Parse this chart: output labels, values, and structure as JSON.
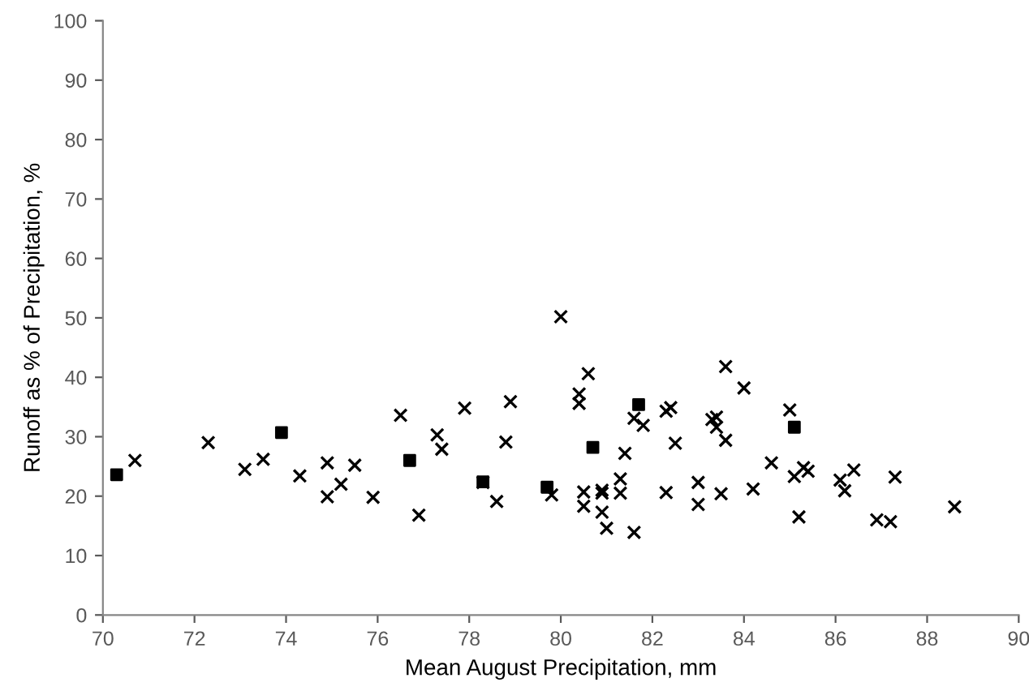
{
  "chart_data": {
    "type": "scatter",
    "xlabel": "Mean August Precipitation, mm",
    "ylabel": "Runoff as % of Precipitation, %",
    "xlim": [
      70,
      90
    ],
    "xticks": [
      70,
      72,
      74,
      76,
      78,
      80,
      82,
      84,
      86,
      88,
      90
    ],
    "ylim": [
      0,
      100
    ],
    "yticks": [
      0,
      10,
      20,
      30,
      40,
      50,
      60,
      70,
      80,
      90,
      100
    ],
    "grid": false,
    "legend": false,
    "series": [
      {
        "color": "#000000",
        "marker": "cross",
        "x": [
          70.7,
          72.3,
          73.1,
          73.5,
          74.3,
          74.9,
          74.9,
          75.2,
          75.5,
          75.9,
          76.5,
          76.9,
          77.3,
          77.4,
          77.9,
          78.3,
          78.6,
          78.8,
          78.9,
          79.8,
          80.0,
          80.4,
          80.4,
          80.5,
          80.5,
          80.6,
          80.9,
          80.9,
          80.9,
          81.0,
          81.3,
          81.3,
          81.4,
          81.6,
          81.6,
          81.8,
          82.3,
          82.3,
          82.4,
          82.5,
          83.0,
          83.0,
          83.3,
          83.4,
          83.4,
          83.5,
          83.6,
          83.6,
          84.0,
          84.2,
          84.6,
          85.0,
          85.1,
          85.2,
          85.3,
          85.4,
          86.1,
          86.2,
          86.4,
          86.9,
          87.2,
          87.3,
          88.6
        ],
        "values": [
          26,
          29,
          24.5,
          26.2,
          23.4,
          25.6,
          19.9,
          22,
          25.2,
          19.8,
          33.6,
          16.8,
          30.3,
          27.9,
          34.8,
          22.3,
          19.1,
          29.1,
          35.9,
          20.2,
          50.2,
          37.2,
          35.6,
          18.3,
          20.7,
          40.6,
          21,
          20.5,
          17.3,
          14.6,
          22.9,
          20.5,
          27.2,
          33.1,
          13.9,
          31.9,
          20.6,
          34.3,
          34.9,
          28.9,
          18.6,
          22.3,
          32.9,
          33.3,
          31.6,
          20.4,
          41.8,
          29.4,
          38.2,
          21.2,
          25.6,
          34.5,
          23.3,
          16.5,
          24.8,
          24.2,
          22.7,
          20.9,
          24.4,
          16.0,
          15.7,
          23.2,
          18.2
        ]
      },
      {
        "color": "#000000",
        "marker": "square",
        "x": [
          70.3,
          73.9,
          76.7,
          78.3,
          79.7,
          80.7,
          81.7,
          85.1
        ],
        "values": [
          23.6,
          30.7,
          26,
          22.4,
          21.5,
          28.2,
          35.4,
          31.6
        ]
      }
    ]
  }
}
